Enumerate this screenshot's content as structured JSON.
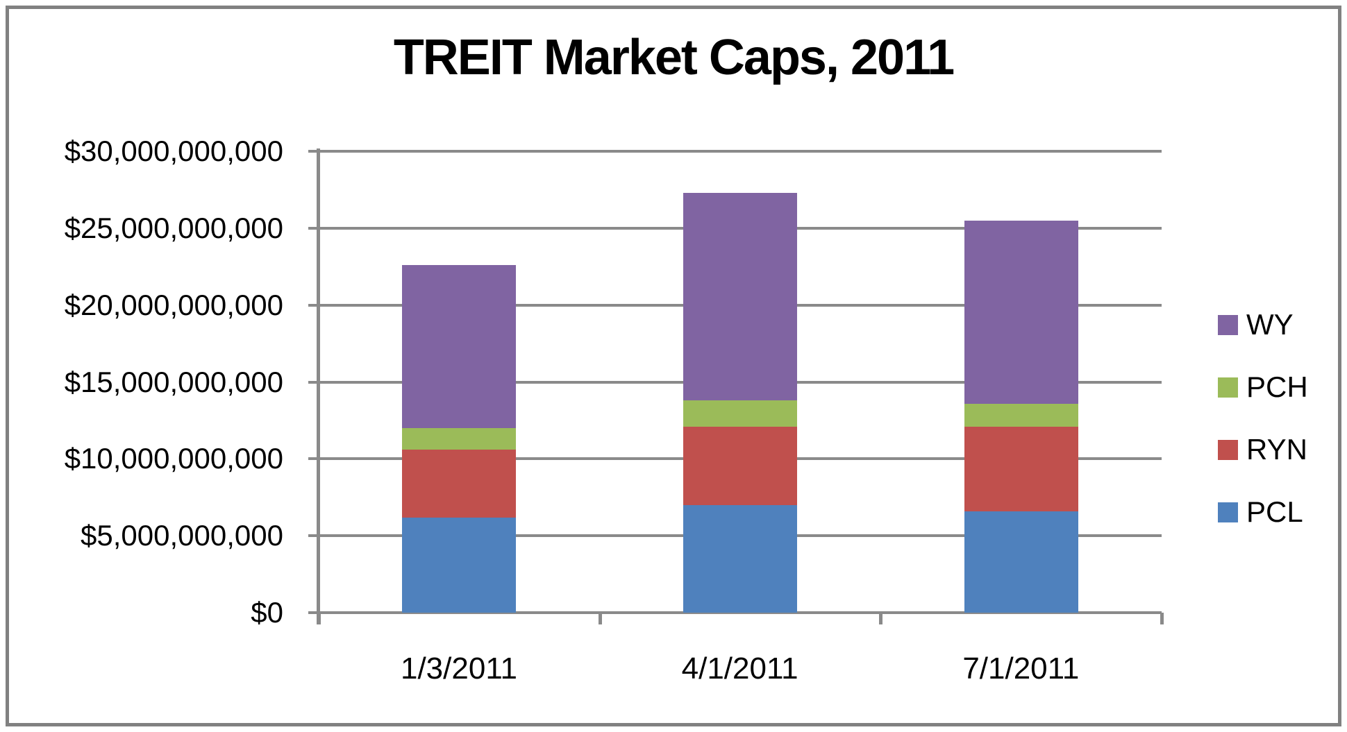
{
  "window": {
    "background_color": "#FFFFFF",
    "frame_color": "#818181"
  },
  "chart_data": {
    "type": "bar",
    "stacked": true,
    "title": "TREIT Market Caps, 2011",
    "categories": [
      "1/3/2011",
      "4/1/2011",
      "7/1/2011"
    ],
    "series": [
      {
        "name": "PCL",
        "color": "#4F81BD",
        "values": [
          6200000000,
          7000000000,
          6600000000
        ]
      },
      {
        "name": "RYN",
        "color": "#C0504D",
        "values": [
          4400000000,
          5100000000,
          5500000000
        ]
      },
      {
        "name": "PCH",
        "color": "#9BBB59",
        "values": [
          1400000000,
          1700000000,
          1500000000
        ]
      },
      {
        "name": "WY",
        "color": "#8064A2",
        "values": [
          10600000000,
          13500000000,
          11900000000
        ]
      }
    ],
    "totals": [
      22600000000,
      27300000000,
      25500000000
    ],
    "y_axis": {
      "min": 0,
      "max": 30000000000,
      "tick_interval": 5000000000,
      "tick_labels": [
        "$0",
        "$5,000,000,000",
        "$10,000,000,000",
        "$15,000,000,000",
        "$20,000,000,000",
        "$25,000,000,000",
        "$30,000,000,000"
      ]
    },
    "x_axis": {
      "tick_labels": [
        "1/3/2011",
        "4/1/2011",
        "7/1/2011"
      ]
    },
    "legend": {
      "position": "right",
      "order": [
        "WY",
        "PCH",
        "RYN",
        "PCL"
      ]
    },
    "grid": true,
    "grid_color": "#8A8A8A",
    "xlabel": "",
    "ylabel": ""
  }
}
